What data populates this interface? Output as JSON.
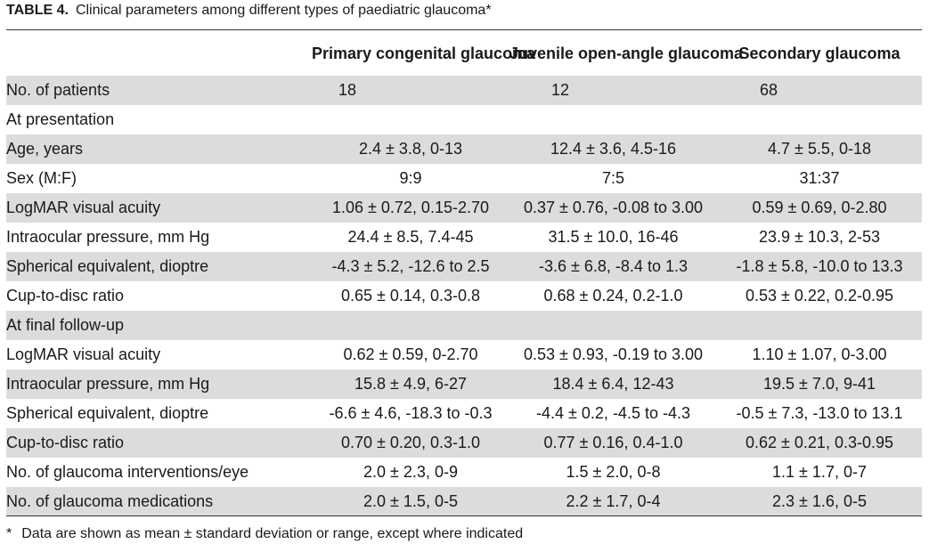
{
  "caption": {
    "label": "TABLE 4.",
    "title": "Clinical parameters among different types of paediatric glaucoma",
    "mark": "*"
  },
  "columns": [
    "Primary congenital glaucoma",
    "Juvenile open-angle glaucoma",
    "Secondary glaucoma"
  ],
  "patients": {
    "label": "No. of patients",
    "values": [
      "18",
      "12",
      "68"
    ]
  },
  "sections": [
    {
      "title": "At presentation",
      "rows": [
        {
          "label": "Age, years",
          "values": [
            "2.4 ± 3.8, 0-13",
            "12.4 ± 3.6, 4.5-16",
            "4.7 ± 5.5, 0-18"
          ]
        },
        {
          "label": "Sex (M:F)",
          "values": [
            "9:9",
            "7:5",
            "31:37"
          ]
        },
        {
          "label": "LogMAR visual acuity",
          "values": [
            "1.06 ± 0.72, 0.15-2.70",
            "0.37 ± 0.76, -0.08 to 3.00",
            "0.59 ± 0.69, 0-2.80"
          ]
        },
        {
          "label": "Intraocular pressure, mm Hg",
          "values": [
            "24.4 ± 8.5, 7.4-45",
            "31.5 ± 10.0, 16-46",
            "23.9 ± 10.3, 2-53"
          ]
        },
        {
          "label": "Spherical equivalent, dioptre",
          "values": [
            "-4.3 ± 5.2, -12.6 to 2.5",
            "-3.6 ± 6.8, -8.4 to 1.3",
            "-1.8 ± 5.8, -10.0 to 13.3"
          ]
        },
        {
          "label": "Cup-to-disc ratio",
          "values": [
            "0.65 ± 0.14, 0.3-0.8",
            "0.68 ± 0.24, 0.2-1.0",
            "0.53 ± 0.22, 0.2-0.95"
          ]
        }
      ]
    },
    {
      "title": "At final follow-up",
      "rows": [
        {
          "label": "LogMAR visual acuity",
          "values": [
            "0.62 ± 0.59, 0-2.70",
            "0.53 ± 0.93, -0.19 to 3.00",
            "1.10 ± 1.07, 0-3.00"
          ]
        },
        {
          "label": "Intraocular pressure, mm Hg",
          "values": [
            "15.8 ± 4.9, 6-27",
            "18.4 ± 6.4, 12-43",
            "19.5 ± 7.0, 9-41"
          ]
        },
        {
          "label": "Spherical equivalent, dioptre",
          "values": [
            "-6.6 ± 4.6, -18.3 to -0.3",
            "-4.4 ± 0.2, -4.5 to -4.3",
            "-0.5 ± 7.3, -13.0 to 13.1"
          ]
        },
        {
          "label": "Cup-to-disc ratio",
          "values": [
            "0.70 ± 0.20, 0.3-1.0",
            "0.77 ± 0.16, 0.4-1.0",
            "0.62 ± 0.21, 0.3-0.95"
          ]
        },
        {
          "label": "No. of glaucoma interventions/eye",
          "values": [
            "2.0 ± 2.3, 0-9",
            "1.5 ± 2.0, 0-8",
            "1.1 ± 1.7, 0-7"
          ]
        },
        {
          "label": "No. of glaucoma medications",
          "values": [
            "2.0 ± 1.5, 0-5",
            "2.2 ± 1.7, 0-4",
            "2.3 ± 1.6, 0-5"
          ]
        }
      ]
    }
  ],
  "footnote": {
    "mark": "*",
    "text": "Data are shown as mean ± standard deviation or range, except where indicated"
  },
  "colors": {
    "shade": "#dcdcdc",
    "rule": "#333333"
  }
}
